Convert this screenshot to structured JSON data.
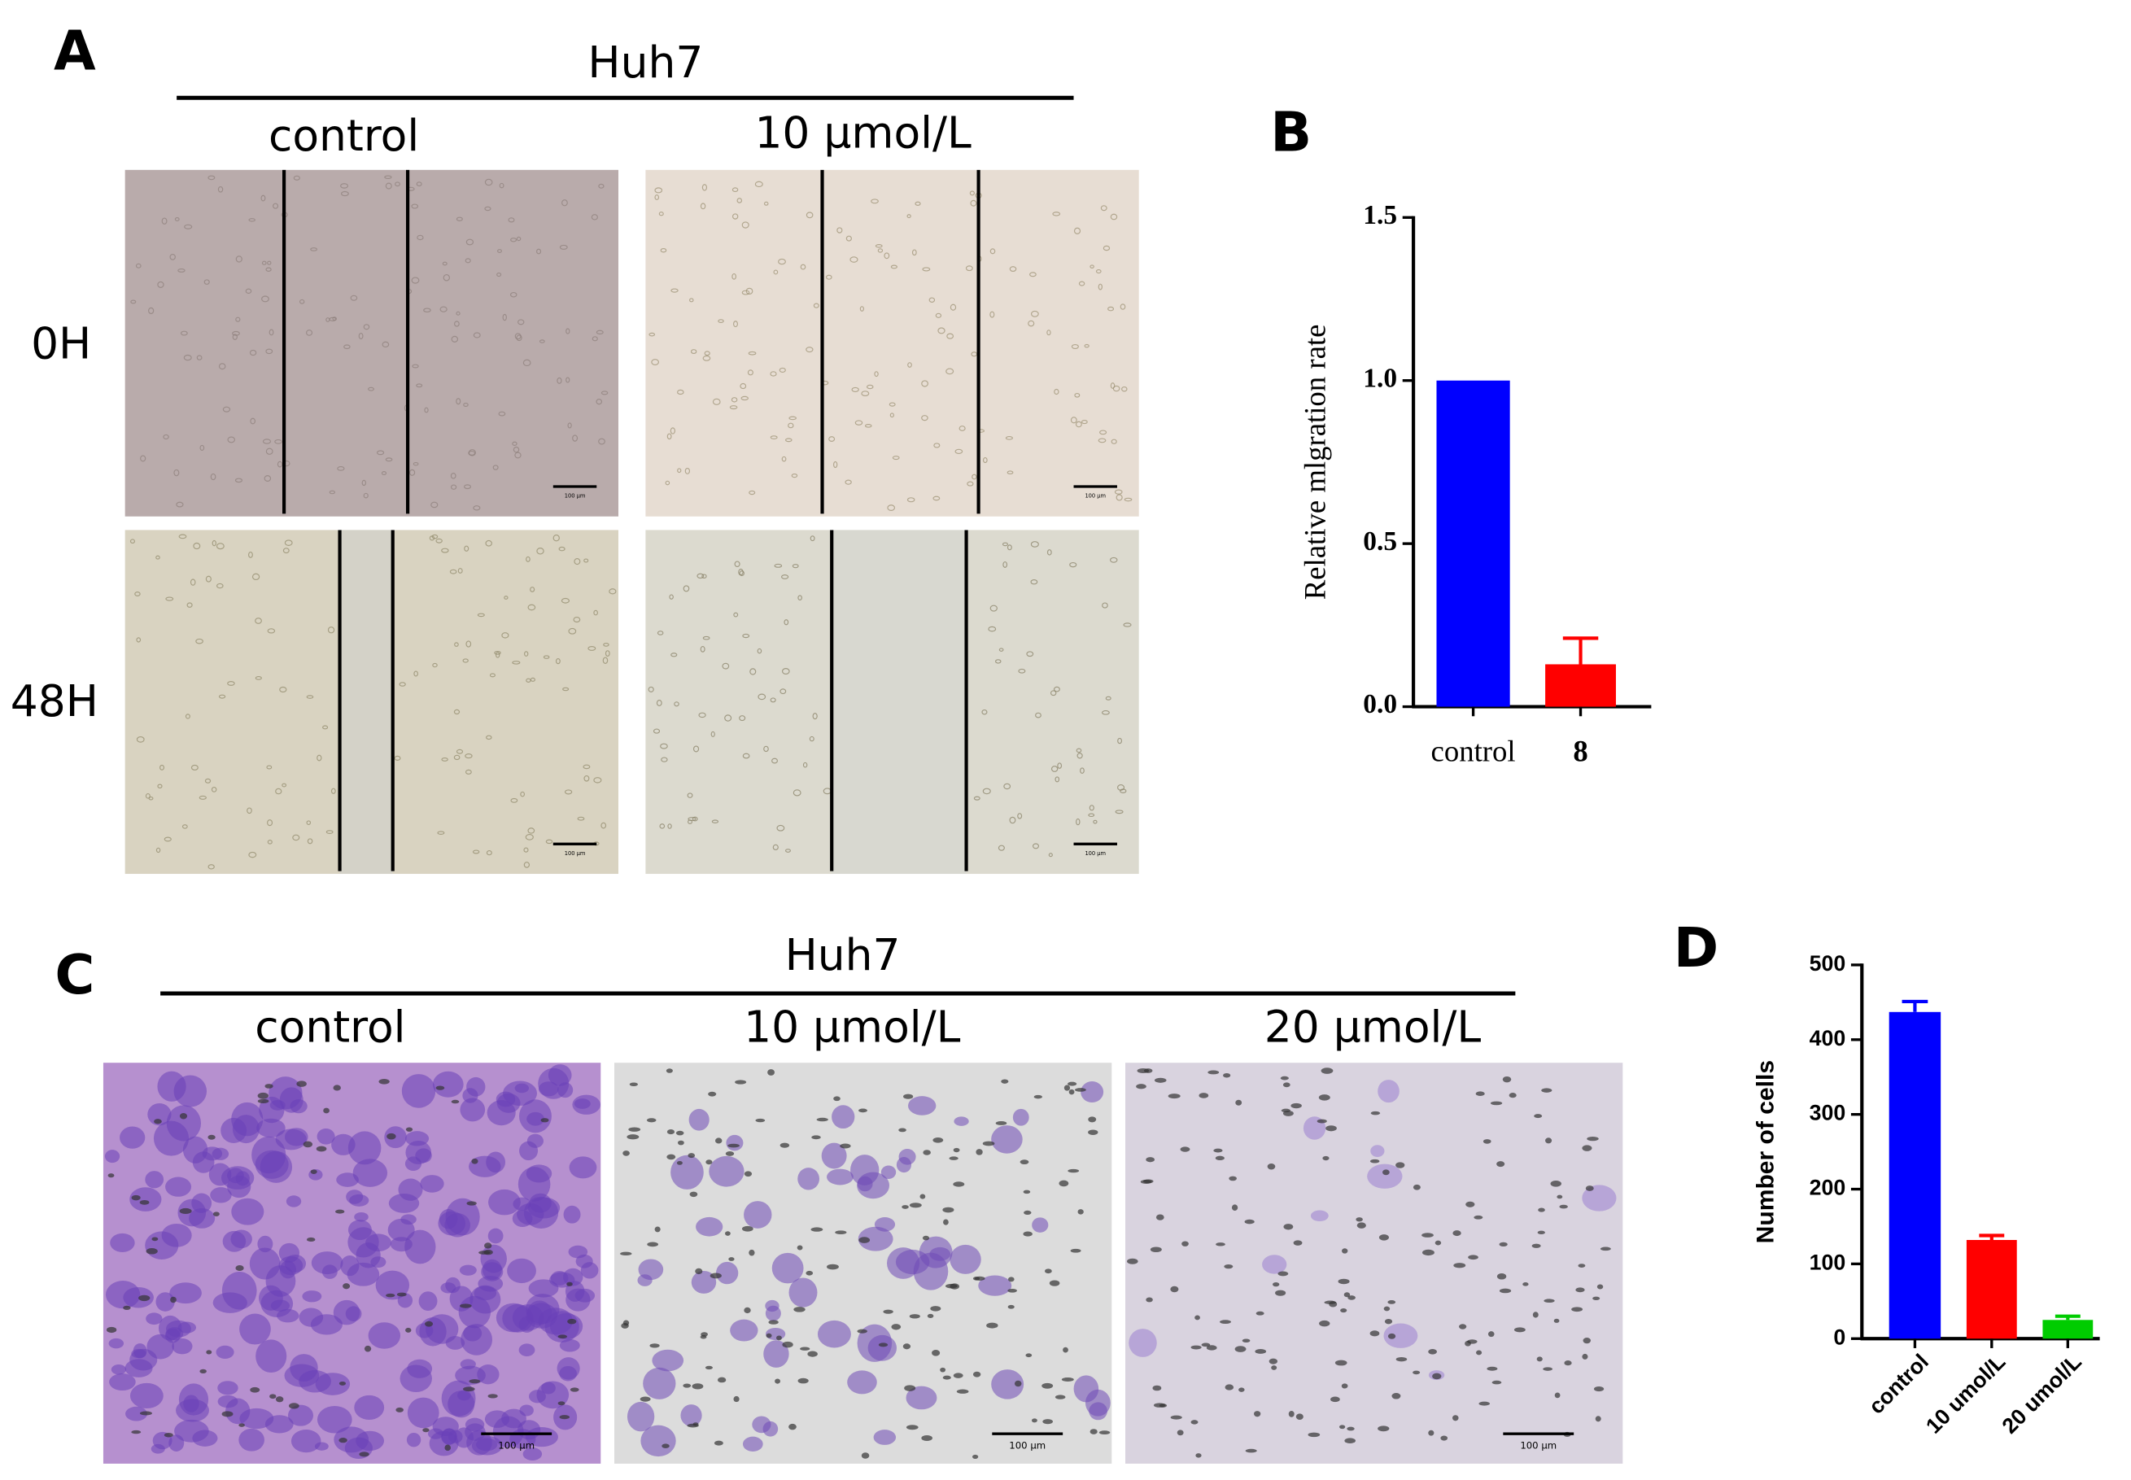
{
  "panels": {
    "A": {
      "label": "A",
      "cell_line": "Huh7",
      "columns": [
        "control",
        "10 µmol/L"
      ],
      "rows": [
        "0H",
        "48H"
      ],
      "scale_bar": "100 µm"
    },
    "C": {
      "label": "C",
      "cell_line": "Huh7",
      "columns": [
        "control",
        "10 µmol/L",
        "20 µmol/L"
      ],
      "scale_bar": "100 µm"
    }
  },
  "chart_data": [
    {
      "type": "bar",
      "panel_label": "B",
      "y_label": "Relative mlgration rate",
      "categories": [
        "control",
        "8"
      ],
      "values": [
        1.0,
        0.13
      ],
      "errors": [
        null,
        0.08
      ],
      "colors": [
        "#0000ff",
        "#ff0000"
      ],
      "ylim": [
        0,
        1.5
      ],
      "yticks": [
        {
          "value": 0,
          "label": "0.0"
        },
        {
          "value": 0.5,
          "label": "0.5"
        },
        {
          "value": 1,
          "label": "1.0"
        },
        {
          "value": 1.5,
          "label": "1.5"
        }
      ]
    },
    {
      "type": "bar",
      "panel_label": "D",
      "y_label": "Number of cells",
      "categories": [
        "control",
        "10 umol/L",
        "20 umol/L"
      ],
      "values": [
        437,
        132,
        25
      ],
      "errors": [
        14,
        6,
        5
      ],
      "colors": [
        "#0000ff",
        "#ff0000",
        "#00cc00"
      ],
      "ylim": [
        0,
        500
      ],
      "yticks": [
        0,
        100,
        200,
        300,
        400,
        500
      ]
    }
  ]
}
